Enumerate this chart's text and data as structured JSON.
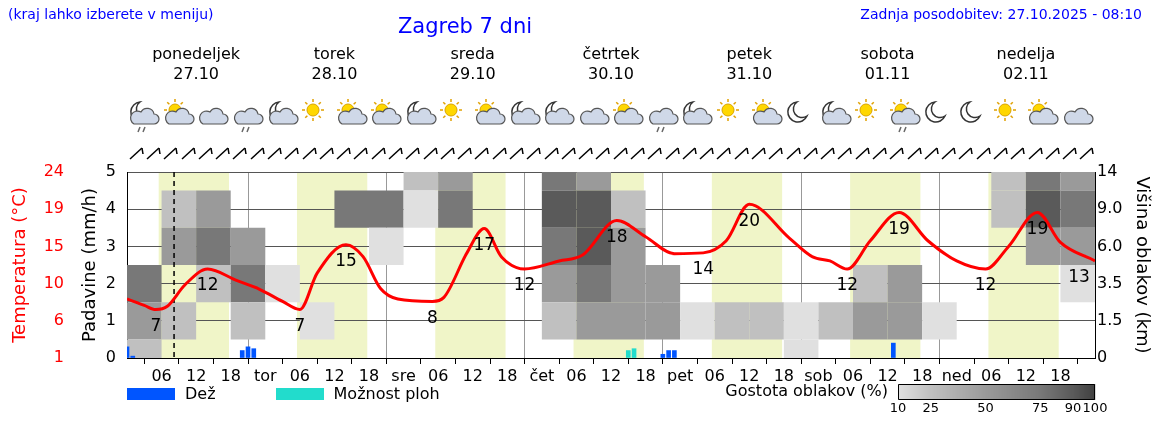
{
  "chart_data": [
    {
      "type": "line",
      "title": "Zagreb 7 dni",
      "annotations": [
        "(kraj lahko izberete v meniju)",
        "Zadnja posodobitev: 27.10.2025 - 08:10"
      ],
      "ylabel": "Padavine (mm/h)",
      "y2label": "Temperatura (°C)",
      "xlim": [
        "2025-10-27T00:00",
        "2025-11-03T00:00"
      ],
      "xticks": [
        {
          "value": "2025-10-27T06:00",
          "label": "06"
        },
        {
          "value": "2025-10-27T12:00",
          "label": "12"
        },
        {
          "value": "2025-10-27T18:00",
          "label": "18"
        },
        {
          "value": "2025-10-28T00:00",
          "label": "tor"
        },
        {
          "value": "2025-10-28T06:00",
          "label": "06"
        },
        {
          "value": "2025-10-28T12:00",
          "label": "12"
        },
        {
          "value": "2025-10-28T18:00",
          "label": "18"
        },
        {
          "value": "2025-10-29T00:00",
          "label": "sre"
        },
        {
          "value": "2025-10-29T06:00",
          "label": "06"
        },
        {
          "value": "2025-10-29T12:00",
          "label": "12"
        },
        {
          "value": "2025-10-29T18:00",
          "label": "18"
        },
        {
          "value": "2025-10-30T00:00",
          "label": "čet"
        },
        {
          "value": "2025-10-30T06:00",
          "label": "06"
        },
        {
          "value": "2025-10-30T12:00",
          "label": "12"
        },
        {
          "value": "2025-10-30T18:00",
          "label": "18"
        },
        {
          "value": "2025-10-31T00:00",
          "label": "pet"
        },
        {
          "value": "2025-10-31T06:00",
          "label": "06"
        },
        {
          "value": "2025-10-31T12:00",
          "label": "12"
        },
        {
          "value": "2025-10-31T18:00",
          "label": "18"
        },
        {
          "value": "2025-11-01T00:00",
          "label": "sob"
        },
        {
          "value": "2025-11-01T06:00",
          "label": "06"
        },
        {
          "value": "2025-11-01T12:00",
          "label": "12"
        },
        {
          "value": "2025-11-01T18:00",
          "label": "18"
        },
        {
          "value": "2025-11-02T00:00",
          "label": "ned"
        },
        {
          "value": "2025-11-02T06:00",
          "label": "06"
        },
        {
          "value": "2025-11-02T12:00",
          "label": "12"
        },
        {
          "value": "2025-11-02T18:00",
          "label": "18"
        }
      ],
      "x2lim": [
        "2025-10-27T00:00",
        "2025-11-03T00:00"
      ],
      "x2ticks": [
        {
          "value": "2025-10-27T12:00",
          "label": "ponedeljek 27.10"
        },
        {
          "value": "2025-10-28T12:00",
          "label": "torek 28.10"
        },
        {
          "value": "2025-10-29T12:00",
          "label": "sreda 29.10"
        },
        {
          "value": "2025-10-30T12:00",
          "label": "četrtek 30.10"
        },
        {
          "value": "2025-10-31T12:00",
          "label": "petek 31.10"
        },
        {
          "value": "2025-11-01T12:00",
          "label": "sobota 01.11"
        },
        {
          "value": "2025-11-02T12:00",
          "label": "nedelja 02.11"
        }
      ],
      "ylim": [
        0,
        5
      ],
      "yticks": [
        0,
        1,
        2,
        3,
        4,
        5
      ],
      "y2lim": [
        1,
        24
      ],
      "y2ticks": [
        1,
        {
          "value": 5.6,
          "label": "6"
        },
        {
          "value": 10.2,
          "label": "10"
        },
        {
          "value": 14.8,
          "label": "15"
        },
        {
          "value": 19.4,
          "label": "19"
        },
        24
      ],
      "grid": true,
      "legend": "bottom",
      "marker": "none",
      "bands": [
        {
          "axis": "x",
          "from": "2025-10-27T05:30",
          "to": "2025-10-27T17:42",
          "color": "#f0f5c8"
        },
        {
          "axis": "x",
          "from": "2025-10-28T05:30",
          "to": "2025-10-28T17:42",
          "color": "#f0f5c8"
        },
        {
          "axis": "x",
          "from": "2025-10-29T05:30",
          "to": "2025-10-29T17:42",
          "color": "#f0f5c8"
        },
        {
          "axis": "x",
          "from": "2025-10-30T05:30",
          "to": "2025-10-30T17:42",
          "color": "#f0f5c8"
        },
        {
          "axis": "x",
          "from": "2025-10-31T05:30",
          "to": "2025-10-31T17:42",
          "color": "#f0f5c8"
        },
        {
          "axis": "x",
          "from": "2025-11-01T05:30",
          "to": "2025-11-01T17:42",
          "color": "#f0f5c8"
        },
        {
          "axis": "x",
          "from": "2025-11-02T05:30",
          "to": "2025-11-02T17:42",
          "color": "#f0f5c8"
        }
      ],
      "ref_lines": [
        {
          "axis": "x",
          "value": "2025-10-27T08:10",
          "line_style": "dashed",
          "color": "#000000"
        }
      ],
      "series": [
        {
          "name": "Dež",
          "type": "bar",
          "color": "#0055ff",
          "x": [
            "2025-10-27T00:00",
            "2025-10-27T01:00",
            "2025-10-27T20:00",
            "2025-10-27T21:00",
            "2025-10-27T22:00",
            "2025-10-30T21:00",
            "2025-10-30T22:00",
            "2025-10-30T23:00",
            "2025-11-01T13:00"
          ],
          "values": [
            0.3,
            0.05,
            0.2,
            0.3,
            0.25,
            0.1,
            0.2,
            0.2,
            0.4
          ]
        },
        {
          "name": "Možnost ploh",
          "type": "bar",
          "color": "#22dccc",
          "x": [
            "2025-10-30T15:00",
            "2025-10-30T16:00"
          ],
          "values": [
            0.2,
            0.25
          ]
        },
        {
          "type": "line",
          "axis": "y2",
          "color": "#ff0000",
          "x": [
            "2025-10-27T00:00",
            "2025-10-27T03:00",
            "2025-10-27T05:00",
            "2025-10-27T07:00",
            "2025-10-27T10:00",
            "2025-10-27T14:00",
            "2025-10-27T19:00",
            "2025-10-27T23:00",
            "2025-10-28T03:00",
            "2025-10-28T06:00",
            "2025-10-28T09:00",
            "2025-10-28T14:00",
            "2025-10-28T17:00",
            "2025-10-28T20:00",
            "2025-10-28T23:00",
            "2025-10-29T05:00",
            "2025-10-29T07:00",
            "2025-10-29T11:00",
            "2025-10-29T14:00",
            "2025-10-29T17:00",
            "2025-10-29T21:00",
            "2025-10-30T03:00",
            "2025-10-30T07:00",
            "2025-10-30T13:00",
            "2025-10-30T18:00",
            "2025-10-30T23:00",
            "2025-10-31T04:00",
            "2025-10-31T08:00",
            "2025-10-31T12:00",
            "2025-10-31T19:00",
            "2025-10-31T23:00",
            "2025-11-01T02:00",
            "2025-11-01T05:00",
            "2025-11-01T09:00",
            "2025-11-01T14:00",
            "2025-11-01T19:00",
            "2025-11-02T00:00",
            "2025-11-02T05:00",
            "2025-11-02T09:00",
            "2025-11-02T14:00",
            "2025-11-02T18:00",
            "2025-11-03T00:00"
          ],
          "values": [
            8.3,
            7.5,
            7,
            7.4,
            10,
            12,
            10.6,
            9.5,
            8,
            7,
            11.5,
            15,
            13.5,
            9.6,
            8.3,
            8,
            8.5,
            14,
            17,
            13.5,
            12,
            13,
            13.7,
            18,
            16,
            13.9,
            14,
            15.5,
            20,
            15.8,
            13.5,
            13,
            12,
            15.5,
            19,
            15.5,
            13,
            12,
            14.8,
            19,
            15.3,
            13
          ],
          "value_labels": [
            null,
            null,
            "7",
            null,
            null,
            "12",
            null,
            null,
            null,
            "7",
            null,
            "15",
            null,
            null,
            null,
            "8",
            null,
            null,
            "17",
            null,
            "12",
            null,
            null,
            "18",
            null,
            null,
            "14",
            null,
            "20",
            null,
            null,
            null,
            "12",
            null,
            "19",
            null,
            null,
            "12",
            null,
            "19",
            null,
            "13"
          ]
        }
      ]
    },
    {
      "type": "heatmap",
      "ylabel": "Višina oblakov (km)",
      "clabel": "Gostota oblakov (%)",
      "categories": [
        null,
        null,
        null,
        null,
        null,
        null,
        null,
        null,
        null,
        null,
        null,
        null,
        null,
        null,
        null,
        null,
        null,
        null,
        null,
        null,
        null,
        null,
        null,
        null,
        null,
        null,
        null,
        null
      ],
      "y_categories": [
        "14",
        "9.0",
        "6.0",
        "3.5",
        "1.5",
        "0"
      ],
      "grid": true,
      "cticks": [
        10,
        25,
        50,
        75,
        90,
        100
      ],
      "cells": [
        [
          null,
          null,
          null,
          null,
          null,
          null,
          null,
          null,
          25,
          50,
          null,
          null,
          75,
          50,
          null,
          null,
          null,
          null,
          null,
          null,
          null,
          null,
          null,
          null,
          null,
          25,
          75,
          50
        ],
        [
          null,
          25,
          50,
          null,
          null,
          null,
          75,
          75,
          10,
          75,
          null,
          null,
          90,
          90,
          25,
          null,
          null,
          null,
          null,
          null,
          null,
          null,
          null,
          null,
          null,
          25,
          90,
          75
        ],
        [
          null,
          50,
          75,
          50,
          null,
          null,
          null,
          10,
          null,
          null,
          null,
          null,
          75,
          90,
          50,
          null,
          null,
          null,
          null,
          null,
          null,
          null,
          null,
          null,
          null,
          null,
          50,
          50
        ],
        [
          75,
          null,
          25,
          75,
          10,
          null,
          null,
          null,
          null,
          null,
          null,
          null,
          50,
          75,
          50,
          50,
          null,
          null,
          null,
          null,
          null,
          25,
          50,
          null,
          null,
          null,
          null,
          10
        ],
        [
          50,
          25,
          null,
          25,
          null,
          10,
          null,
          null,
          null,
          null,
          null,
          null,
          25,
          50,
          50,
          50,
          10,
          25,
          25,
          10,
          25,
          50,
          50,
          10,
          null,
          null,
          null,
          null
        ],
        [
          25,
          null,
          null,
          null,
          null,
          null,
          null,
          null,
          null,
          null,
          null,
          null,
          null,
          null,
          null,
          null,
          null,
          null,
          null,
          10,
          null,
          null,
          null,
          null,
          null,
          null,
          null,
          null
        ]
      ]
    }
  ]
}
